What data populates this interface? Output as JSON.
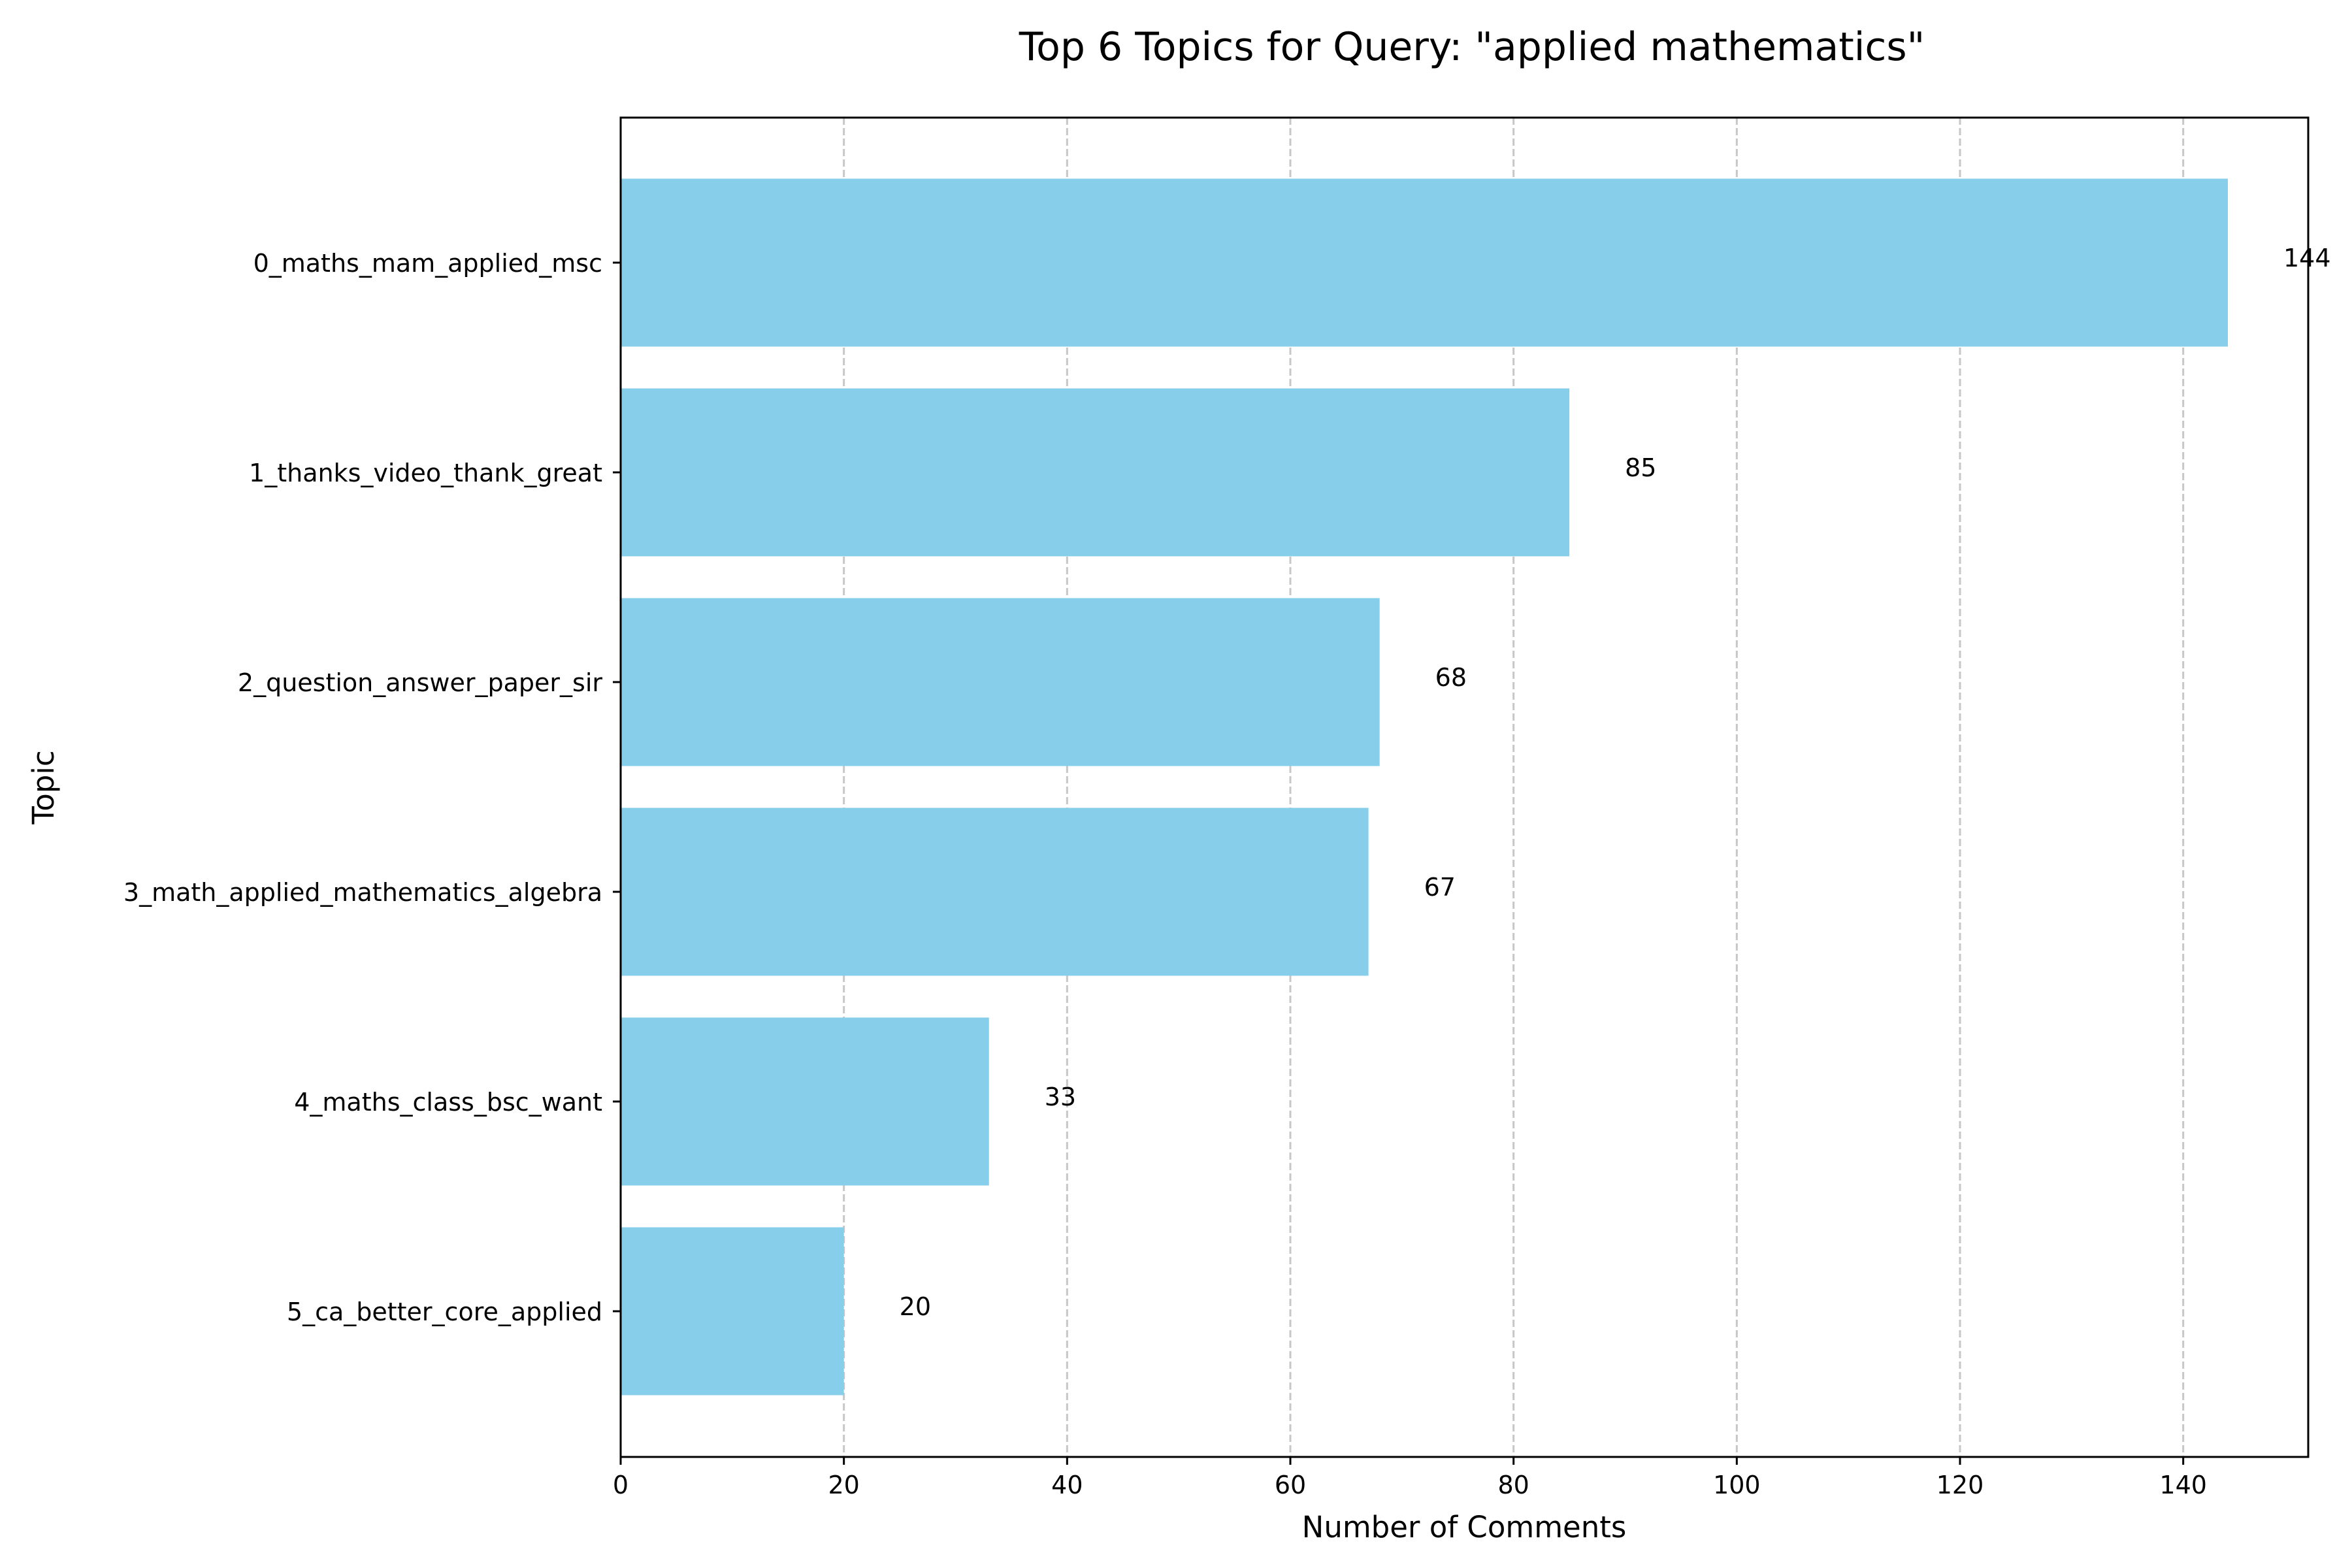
{
  "chart_data": {
    "type": "bar",
    "orientation": "horizontal",
    "title": "Top 6 Topics for Query: \"applied mathematics\"",
    "xlabel": "Number of Comments",
    "ylabel": "Topic",
    "categories": [
      "0_maths_mam_applied_msc",
      "1_thanks_video_thank_great",
      "2_question_answer_paper_sir",
      "3_math_applied_mathematics_algebra",
      "4_maths_class_bsc_want",
      "5_ca_better_core_applied"
    ],
    "values": [
      144,
      85,
      68,
      67,
      33,
      20
    ],
    "data_labels": [
      "144",
      "85",
      "68",
      "67",
      "33",
      "20"
    ],
    "xlim": [
      0,
      151.2
    ],
    "xticks": [
      0,
      20,
      40,
      60,
      80,
      100,
      120,
      140
    ],
    "grid": "x-axis dashed",
    "legend": "none",
    "bar_color": "#87ceeb"
  }
}
